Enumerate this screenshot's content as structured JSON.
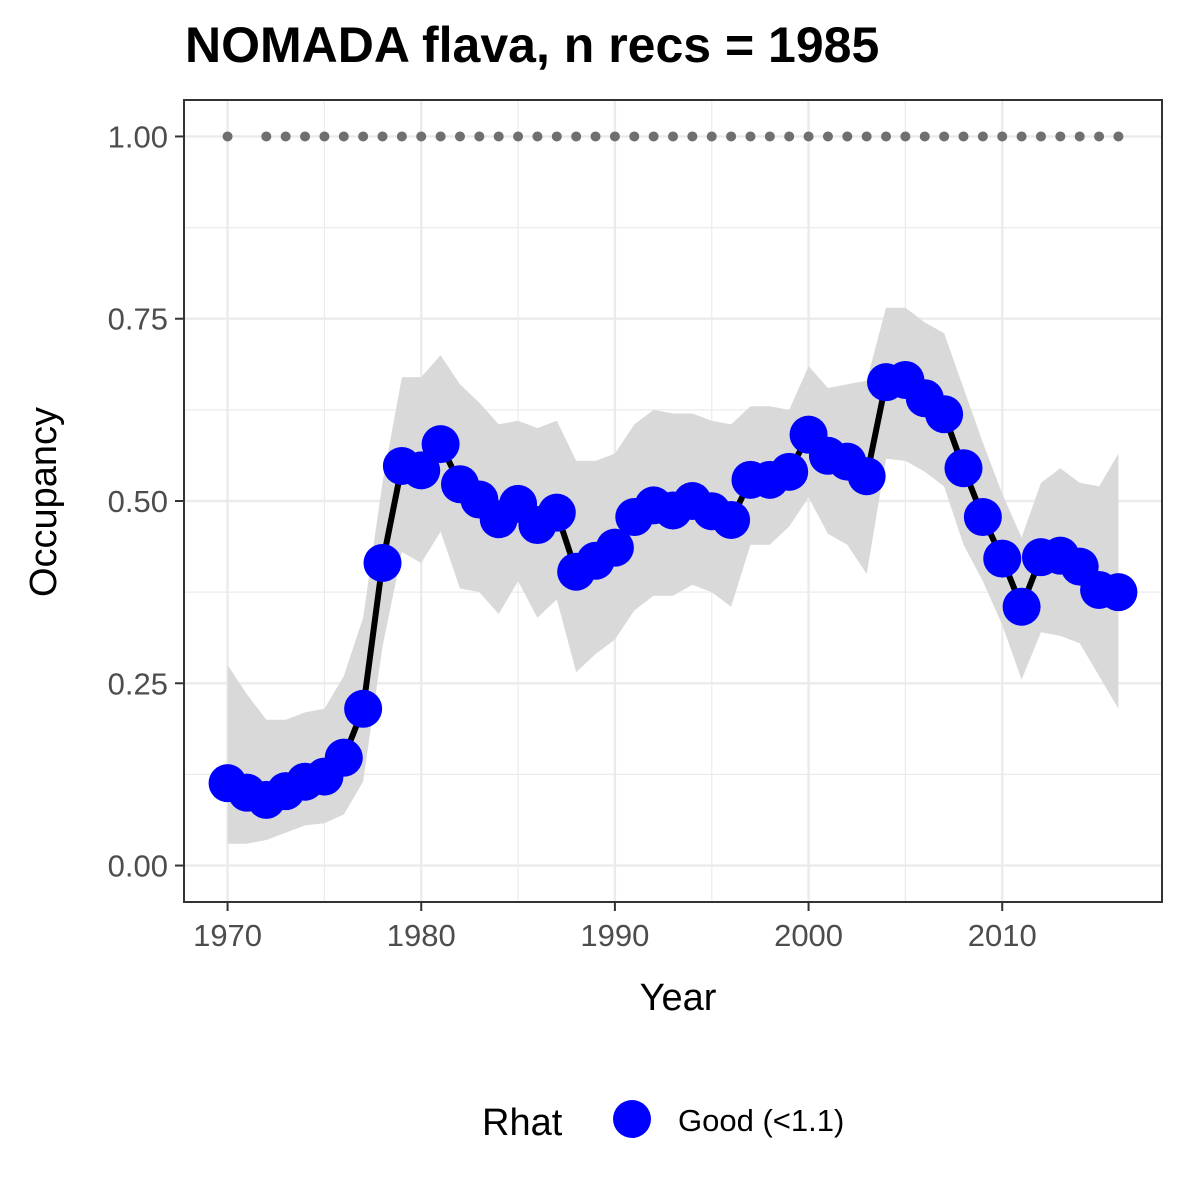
{
  "chart_data": {
    "type": "line",
    "title": "NOMADA flava, n recs = 1985",
    "xlabel": "Year",
    "ylabel": "Occupancy",
    "xlim": [
      1967.75,
      2018.25
    ],
    "ylim": [
      -0.05,
      1.05
    ],
    "x_ticks": [
      1970,
      1980,
      1990,
      2000,
      2010
    ],
    "x_tick_labels": [
      "1970",
      "1980",
      "1990",
      "2000",
      "2010"
    ],
    "y_ticks": [
      0,
      0.25,
      0.5,
      0.75,
      1.0
    ],
    "y_tick_labels": [
      "0.00",
      "0.25",
      "0.50",
      "0.75",
      "1.00"
    ],
    "grid": true,
    "years": [
      1970,
      1971,
      1972,
      1973,
      1974,
      1975,
      1976,
      1977,
      1978,
      1979,
      1980,
      1981,
      1982,
      1983,
      1984,
      1985,
      1986,
      1987,
      1988,
      1989,
      1990,
      1991,
      1992,
      1993,
      1994,
      1995,
      1996,
      1997,
      1998,
      1999,
      2000,
      2001,
      2002,
      2003,
      2004,
      2005,
      2006,
      2007,
      2008,
      2009,
      2010,
      2011,
      2012,
      2013,
      2014,
      2015,
      2016
    ],
    "occupancy": [
      0.113,
      0.1,
      0.09,
      0.102,
      0.115,
      0.122,
      0.148,
      0.215,
      0.415,
      0.548,
      0.542,
      0.578,
      0.523,
      0.502,
      0.475,
      0.496,
      0.467,
      0.484,
      0.403,
      0.418,
      0.436,
      0.478,
      0.494,
      0.487,
      0.5,
      0.486,
      0.474,
      0.529,
      0.529,
      0.54,
      0.591,
      0.562,
      0.554,
      0.534,
      0.663,
      0.666,
      0.641,
      0.619,
      0.545,
      0.478,
      0.421,
      0.355,
      0.423,
      0.425,
      0.41,
      0.378,
      0.375
    ],
    "lower": [
      0.03,
      0.03,
      0.035,
      0.045,
      0.055,
      0.058,
      0.07,
      0.115,
      0.3,
      0.43,
      0.415,
      0.458,
      0.38,
      0.375,
      0.345,
      0.39,
      0.34,
      0.365,
      0.265,
      0.29,
      0.31,
      0.35,
      0.37,
      0.37,
      0.385,
      0.375,
      0.355,
      0.44,
      0.44,
      0.465,
      0.505,
      0.455,
      0.44,
      0.4,
      0.558,
      0.555,
      0.54,
      0.52,
      0.44,
      0.39,
      0.33,
      0.255,
      0.32,
      0.315,
      0.305,
      0.26,
      0.215
    ],
    "upper": [
      0.275,
      0.235,
      0.2,
      0.2,
      0.21,
      0.215,
      0.26,
      0.34,
      0.525,
      0.67,
      0.67,
      0.7,
      0.66,
      0.635,
      0.605,
      0.61,
      0.6,
      0.61,
      0.555,
      0.555,
      0.565,
      0.605,
      0.625,
      0.62,
      0.62,
      0.61,
      0.605,
      0.63,
      0.63,
      0.625,
      0.685,
      0.655,
      0.66,
      0.665,
      0.765,
      0.765,
      0.745,
      0.73,
      0.655,
      0.58,
      0.51,
      0.45,
      0.525,
      0.545,
      0.525,
      0.52,
      0.565
    ],
    "rhat_years": [
      1970,
      1972,
      1973,
      1974,
      1975,
      1976,
      1977,
      1978,
      1979,
      1980,
      1981,
      1982,
      1983,
      1984,
      1985,
      1986,
      1987,
      1988,
      1989,
      1990,
      1991,
      1992,
      1993,
      1994,
      1995,
      1996,
      1997,
      1998,
      1999,
      2000,
      2001,
      2002,
      2003,
      2004,
      2005,
      2006,
      2007,
      2008,
      2009,
      2010,
      2011,
      2012,
      2013,
      2014,
      2015,
      2016
    ],
    "rhat_value": 1.0,
    "legend": {
      "title": "Rhat",
      "entries": [
        "Good (<1.1)"
      ],
      "placement": "bottom"
    },
    "colors": {
      "points": "#0000ff",
      "line": "#000000",
      "ribbon": "#d9d9d9",
      "rhat_dots": "#6f6f6f",
      "grid": "#ebebeb",
      "panel_border": "#333333"
    }
  }
}
